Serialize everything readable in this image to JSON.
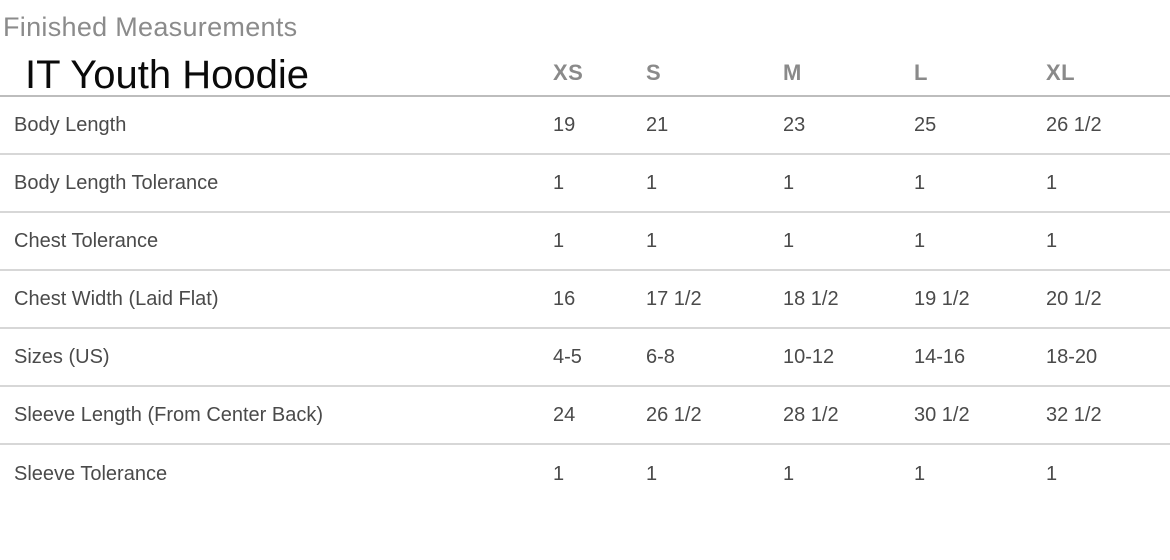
{
  "header": {
    "section_title": "Finished Measurements",
    "product_title": "IT Youth Hoodie"
  },
  "table": {
    "size_headers": [
      "XS",
      "S",
      "M",
      "L",
      "XL"
    ],
    "rows": [
      {
        "label": "Body Length",
        "values": [
          "19",
          "21",
          "23",
          "25",
          "26 1/2"
        ]
      },
      {
        "label": "Body Length Tolerance",
        "values": [
          "1",
          "1",
          "1",
          "1",
          "1"
        ]
      },
      {
        "label": "Chest Tolerance",
        "values": [
          "1",
          "1",
          "1",
          "1",
          "1"
        ]
      },
      {
        "label": "Chest Width (Laid Flat)",
        "values": [
          "16",
          "17 1/2",
          "18 1/2",
          "19 1/2",
          "20 1/2"
        ]
      },
      {
        "label": "Sizes (US)",
        "values": [
          "4-5",
          "6-8",
          "10-12",
          "14-16",
          "18-20"
        ]
      },
      {
        "label": "Sleeve Length (From Center Back)",
        "values": [
          "24",
          "26 1/2",
          "28 1/2",
          "30 1/2",
          "32 1/2"
        ]
      },
      {
        "label": "Sleeve Tolerance",
        "values": [
          "1",
          "1",
          "1",
          "1",
          "1"
        ]
      }
    ]
  }
}
